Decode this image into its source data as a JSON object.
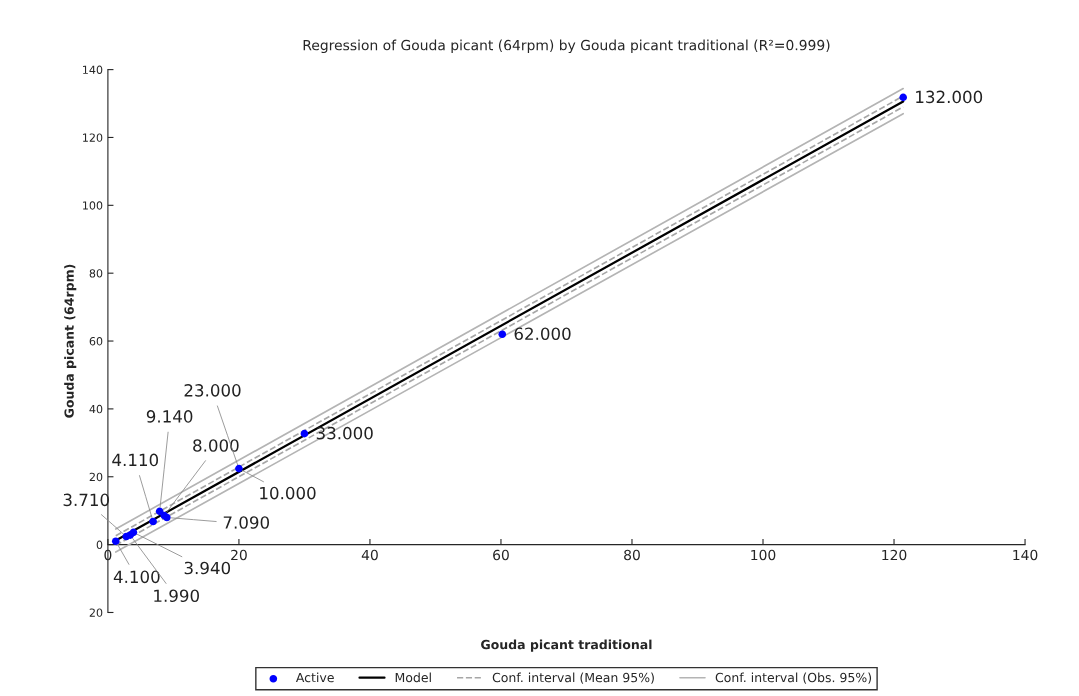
{
  "chart_data": {
    "type": "scatter",
    "title": "Regression of Gouda picant (64rpm) by Gouda picant traditional (R²=0.999)",
    "xlabel": "Gouda picant traditional",
    "ylabel": "Gouda picant (64rpm)",
    "xlim": [
      0,
      140
    ],
    "xticks": [
      0,
      20,
      40,
      60,
      80,
      100,
      120,
      140
    ],
    "ylim": [
      -20,
      140
    ],
    "yticks": [
      {
        "value": -20,
        "label": "20"
      },
      0,
      20,
      40,
      60,
      80,
      100,
      120,
      140
    ],
    "grid": false,
    "legend": "bottom",
    "annotations": [
      {
        "text": "4.100",
        "x": 1.2,
        "y": 1.0
      },
      {
        "text": "3.710",
        "x": 2.8,
        "y": 2.4
      },
      {
        "text": "1.990",
        "x": 3.4,
        "y": 2.8
      },
      {
        "text": "3.940",
        "x": 3.9,
        "y": 3.6
      },
      {
        "text": "4.110",
        "x": 6.9,
        "y": 6.8
      },
      {
        "text": "9.140",
        "x": 7.9,
        "y": 9.8
      },
      {
        "text": "8.000",
        "x": 8.6,
        "y": 8.6
      },
      {
        "text": "7.090",
        "x": 9.0,
        "y": 8.0
      },
      {
        "text": "23.000",
        "x": 20.0,
        "y": 22.4
      },
      {
        "text": "10.000",
        "x": 20.0,
        "y": 22.4
      },
      {
        "text": "33.000",
        "x": 30.0,
        "y": 32.7
      },
      {
        "text": "62.000",
        "x": 60.2,
        "y": 62.0
      },
      {
        "text": "132.000",
        "x": 121.4,
        "y": 131.8
      }
    ],
    "series": [
      {
        "name": "Active",
        "type": "scatter",
        "color": "#0000ff",
        "marker": "circle",
        "x": [
          1.2,
          2.8,
          3.4,
          3.9,
          6.9,
          7.9,
          8.6,
          9.0,
          20.0,
          30.0,
          60.2,
          121.4
        ],
        "values": [
          1.0,
          2.4,
          2.8,
          3.6,
          6.8,
          9.8,
          8.6,
          8.0,
          22.4,
          32.7,
          62.0,
          131.8
        ]
      },
      {
        "name": "Model",
        "type": "line",
        "color": "#000000",
        "line_style": "solid",
        "x": [
          1.2,
          121.4
        ],
        "values": [
          1.2,
          130.6
        ]
      },
      {
        "name": "Conf. interval (Mean 95%)",
        "type": "line",
        "color": "#a6a6a6",
        "line_style": "dashed",
        "x": [
          1.2,
          121.4
        ],
        "values": [
          2.6,
          132.2
        ]
      },
      {
        "type": "line",
        "color": "#a6a6a6",
        "line_style": "dashed",
        "x": [
          1.2,
          121.4
        ],
        "values": [
          -0.2,
          129.0
        ]
      },
      {
        "name": "Conf. interval (Obs. 95%)",
        "type": "line",
        "color": "#b4b4b4",
        "line_style": "solid",
        "x": [
          1.2,
          121.4
        ],
        "values": [
          4.6,
          134.4
        ]
      },
      {
        "type": "line",
        "color": "#b4b4b4",
        "line_style": "solid",
        "x": [
          1.2,
          121.4
        ],
        "values": [
          -2.2,
          127.0
        ]
      }
    ]
  }
}
